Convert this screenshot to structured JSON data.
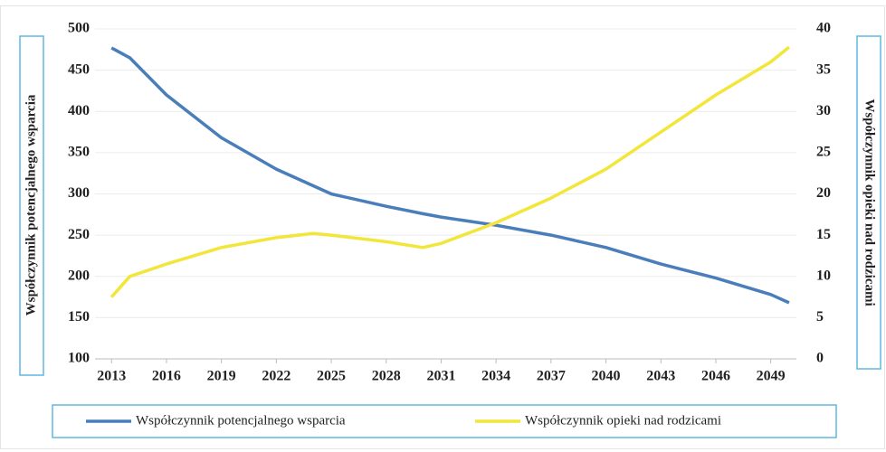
{
  "chart_data": {
    "type": "line",
    "y_label": "Współczynnik potencjalnego wsparcia",
    "y2_label": "Współczynnik opieki nad rodzicami",
    "x": [
      2013,
      2014,
      2016,
      2019,
      2022,
      2024,
      2025,
      2028,
      2030,
      2031,
      2034,
      2037,
      2040,
      2043,
      2046,
      2049,
      2050
    ],
    "series": [
      {
        "name": "Współczynnik  potencjalnego wsparcia",
        "color": "#4a7ebb",
        "values": [
          477,
          465,
          420,
          368,
          330,
          310,
          300,
          285,
          276,
          272,
          262,
          250,
          235,
          215,
          198,
          178,
          168
        ]
      },
      {
        "name": "Współczynnik opieki nad rodzicami",
        "color": "#f2e63a",
        "axis": "y2",
        "values": [
          7.5,
          10,
          11.5,
          13.5,
          14.7,
          15.2,
          15,
          14.2,
          13.5,
          14,
          16.5,
          19.5,
          23,
          27.5,
          32,
          36,
          37.8
        ]
      }
    ],
    "xlim": [
      2012.1,
      2050.4
    ],
    "xticks": [
      2013,
      2016,
      2019,
      2022,
      2025,
      2028,
      2031,
      2034,
      2037,
      2040,
      2043,
      2046,
      2049
    ],
    "ylim": [
      100,
      500
    ],
    "yticks": [
      100,
      150,
      200,
      250,
      300,
      350,
      400,
      450,
      500
    ],
    "y2lim": [
      0,
      40
    ],
    "y2ticks": [
      0,
      5,
      10,
      15,
      20,
      25,
      30,
      35,
      40
    ],
    "grid": true
  }
}
